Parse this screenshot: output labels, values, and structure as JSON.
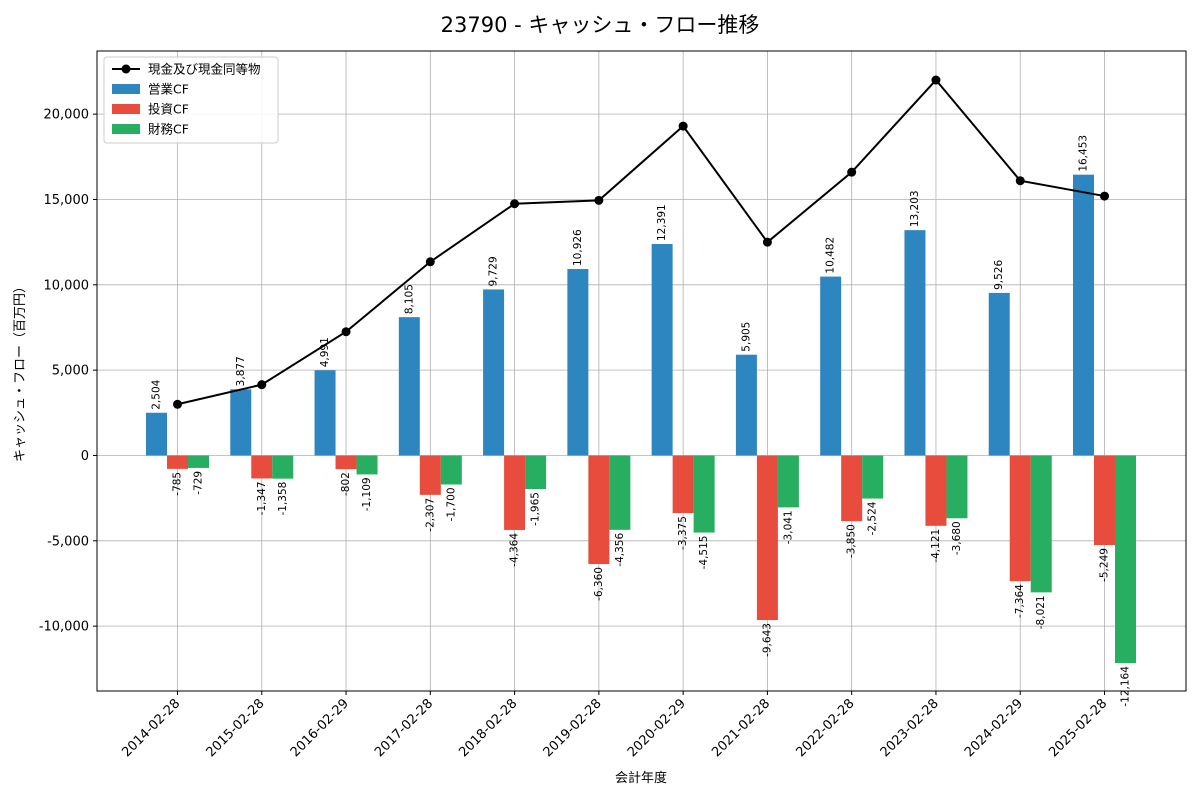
{
  "chart_data": {
    "type": "bar",
    "title": "23790 - キャッシュ・フロー推移",
    "xlabel": "会計年度",
    "ylabel": "キャッシュ・フロー（百万円）",
    "categories": [
      "2014-02-28",
      "2015-02-28",
      "2016-02-29",
      "2017-02-28",
      "2018-02-28",
      "2019-02-28",
      "2020-02-29",
      "2021-02-28",
      "2022-02-28",
      "2023-02-28",
      "2024-02-29",
      "2025-02-28"
    ],
    "ylim": [
      -13800,
      23700
    ],
    "yticks": [
      -10000,
      -5000,
      0,
      5000,
      10000,
      15000,
      20000
    ],
    "ytick_labels": [
      "-10,000",
      "-5,000",
      "0",
      "5,000",
      "10,000",
      "15,000",
      "20,000"
    ],
    "grid": true,
    "legend_position": "top-left",
    "series": [
      {
        "name": "営業CF",
        "kind": "bar",
        "color": "#2e86c1",
        "values": [
          2504,
          3877,
          4991,
          8105,
          9729,
          10926,
          12391,
          5905,
          10482,
          13203,
          9526,
          16453
        ],
        "labels": [
          "2,504",
          "3,877",
          "4,991",
          "8,105",
          "9,729",
          "10,926",
          "12,391",
          "5,905",
          "10,482",
          "13,203",
          "9,526",
          "16,453"
        ]
      },
      {
        "name": "投資CF",
        "kind": "bar",
        "color": "#e74c3c",
        "values": [
          -785,
          -1347,
          -802,
          -2307,
          -4364,
          -6360,
          -3375,
          -9643,
          -3850,
          -4121,
          -7364,
          -5249
        ],
        "labels": [
          "-785",
          "-1,347",
          "-802",
          "-2,307",
          "-4,364",
          "-6,360",
          "-3,375",
          "-9,643",
          "-3,850",
          "-4,121",
          "-7,364",
          "-5,249"
        ]
      },
      {
        "name": "財務CF",
        "kind": "bar",
        "color": "#27ae60",
        "values": [
          -729,
          -1358,
          -1109,
          -1700,
          -1965,
          -4356,
          -4515,
          -3041,
          -2524,
          -3680,
          -8021,
          -12164
        ],
        "labels": [
          "-729",
          "-1,358",
          "-1,109",
          "-1,700",
          "-1,965",
          "-4,356",
          "-4,515",
          "-3,041",
          "-2,524",
          "-3,680",
          "-8,021",
          "-12,164"
        ]
      },
      {
        "name": "現金及び現金同等物",
        "kind": "line",
        "color": "#000000",
        "values": [
          3000,
          4150,
          7250,
          11350,
          14750,
          14950,
          19300,
          12500,
          16600,
          22000,
          16100,
          15200
        ]
      }
    ]
  }
}
